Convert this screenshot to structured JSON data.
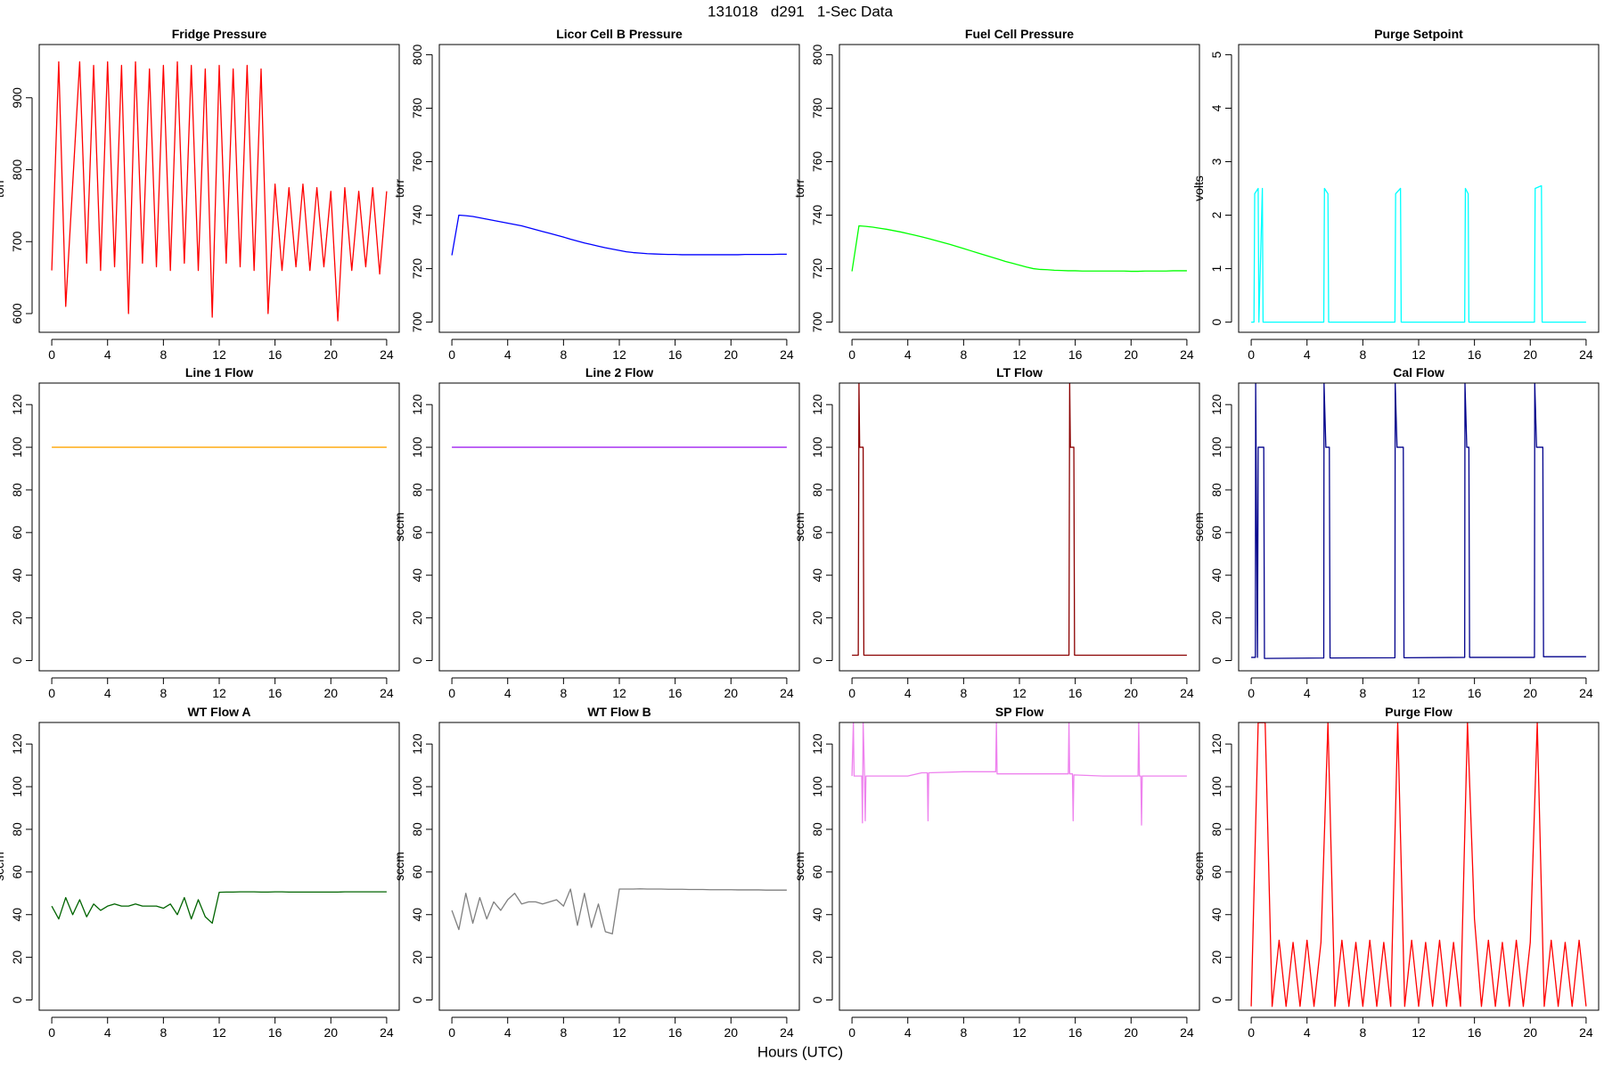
{
  "title": "131018   d291   1-Sec Data",
  "x_label": "Hours (UTC)",
  "chart_data": [
    {
      "type": "line",
      "title": "Fridge Pressure",
      "y_label": "torr",
      "color": "#ff0000",
      "x": [
        0,
        0.5,
        1,
        1.5,
        2,
        2.5,
        3,
        3.5,
        4,
        4.5,
        5,
        5.5,
        6,
        6.5,
        7,
        7.5,
        8,
        8.5,
        9,
        9.5,
        10,
        10.5,
        11,
        11.5,
        12,
        12.5,
        13,
        13.5,
        14,
        14.5,
        15,
        15.5,
        16,
        16.5,
        17,
        17.5,
        18,
        18.5,
        19,
        19.5,
        20,
        20.5,
        21,
        21.5,
        22,
        22.5,
        23,
        23.5,
        24
      ],
      "values": [
        660,
        950,
        610,
        780,
        950,
        670,
        945,
        660,
        950,
        665,
        945,
        600,
        950,
        670,
        940,
        665,
        945,
        660,
        950,
        670,
        945,
        660,
        940,
        595,
        945,
        670,
        940,
        665,
        945,
        660,
        940,
        600,
        780,
        660,
        775,
        665,
        780,
        660,
        775,
        665,
        770,
        590,
        775,
        660,
        770,
        665,
        775,
        655,
        770
      ],
      "xlim": [
        -0.9,
        24.9
      ],
      "ylim": [
        574,
        974
      ],
      "xticks": [
        0,
        4,
        8,
        12,
        16,
        20,
        24
      ],
      "yticks": [
        600,
        700,
        800,
        900
      ]
    },
    {
      "type": "line",
      "title": "Licor Cell B Pressure",
      "y_label": "torr",
      "color": "#0000ff",
      "x": [
        0,
        0.5,
        1,
        1.5,
        2,
        2.5,
        3,
        3.5,
        4,
        4.5,
        5,
        5.5,
        6,
        6.5,
        7,
        7.5,
        8,
        8.5,
        9,
        9.5,
        10,
        10.5,
        11,
        11.5,
        12,
        12.5,
        13,
        13.5,
        14,
        14.5,
        15,
        15.5,
        16,
        16.5,
        17,
        17.5,
        18,
        18.5,
        19,
        19.5,
        20,
        20.5,
        21,
        21.5,
        22,
        22.5,
        23,
        23.5,
        24
      ],
      "values": [
        725,
        740,
        739.8,
        739.5,
        739,
        738.5,
        738,
        737.5,
        737,
        736.5,
        736,
        735.3,
        734.6,
        733.9,
        733.2,
        732.5,
        731.8,
        731,
        730.3,
        729.6,
        729,
        728.4,
        727.8,
        727.3,
        726.8,
        726.3,
        726,
        725.8,
        725.6,
        725.5,
        725.4,
        725.3,
        725.3,
        725.2,
        725.2,
        725.2,
        725.2,
        725.2,
        725.2,
        725.2,
        725.2,
        725.2,
        725.3,
        725.3,
        725.3,
        725.3,
        725.3,
        725.4,
        725.4
      ],
      "xlim": [
        -0.9,
        24.9
      ],
      "ylim": [
        696.2,
        803.8
      ],
      "xticks": [
        0,
        4,
        8,
        12,
        16,
        20,
        24
      ],
      "yticks": [
        700,
        720,
        740,
        760,
        780,
        800
      ]
    },
    {
      "type": "line",
      "title": "Fuel Cell Pressure",
      "y_label": "torr",
      "color": "#00ff00",
      "x": [
        0,
        0.5,
        1,
        1.5,
        2,
        2.5,
        3,
        3.5,
        4,
        4.5,
        5,
        5.5,
        6,
        6.5,
        7,
        7.5,
        8,
        8.5,
        9,
        9.5,
        10,
        10.5,
        11,
        11.5,
        12,
        12.5,
        13,
        13.5,
        14,
        14.5,
        15,
        15.5,
        16,
        16.5,
        17,
        17.5,
        18,
        18.5,
        19,
        19.5,
        20,
        20.5,
        21,
        21.5,
        22,
        22.5,
        23,
        23.5,
        24
      ],
      "values": [
        719,
        736,
        735.8,
        735.5,
        735.1,
        734.7,
        734.2,
        733.7,
        733.1,
        732.5,
        731.9,
        731.2,
        730.5,
        729.8,
        729.1,
        728.3,
        727.5,
        726.7,
        725.9,
        725.1,
        724.3,
        723.5,
        722.7,
        722,
        721.3,
        720.6,
        720,
        719.7,
        719.6,
        719.4,
        719.3,
        719.2,
        719.2,
        719.1,
        719.1,
        719.1,
        719.1,
        719.1,
        719.1,
        719.1,
        719,
        719,
        719.1,
        719.1,
        719.1,
        719.1,
        719.2,
        719.2,
        719.2
      ],
      "xlim": [
        -0.9,
        24.9
      ],
      "ylim": [
        696.2,
        803.8
      ],
      "xticks": [
        0,
        4,
        8,
        12,
        16,
        20,
        24
      ],
      "yticks": [
        700,
        720,
        740,
        760,
        780,
        800
      ]
    },
    {
      "type": "line",
      "title": "Purge Setpoint",
      "y_label": "volts",
      "color": "#00ffff",
      "x": [
        0,
        0.2,
        0.25,
        0.5,
        0.55,
        0.8,
        0.85,
        5.2,
        5.25,
        5.5,
        5.55,
        10.3,
        10.35,
        10.7,
        10.75,
        15.3,
        15.35,
        15.55,
        15.6,
        20.3,
        20.35,
        20.8,
        20.85,
        24
      ],
      "values": [
        0,
        0,
        2.4,
        2.5,
        0,
        2.5,
        0,
        0,
        2.5,
        2.4,
        0,
        0,
        2.4,
        2.5,
        0,
        0,
        2.5,
        2.4,
        0,
        0,
        2.5,
        2.55,
        0,
        0
      ],
      "xlim": [
        -0.9,
        24.9
      ],
      "ylim": [
        -0.19,
        5.19
      ],
      "xticks": [
        0,
        4,
        8,
        12,
        16,
        20,
        24
      ],
      "yticks": [
        0,
        1,
        2,
        3,
        4,
        5
      ]
    },
    {
      "type": "line",
      "title": "Line 1 Flow",
      "color": "#ffa500",
      "x": [
        0,
        24
      ],
      "values": [
        100,
        100
      ],
      "xlim": [
        -0.9,
        24.9
      ],
      "ylim": [
        -4.8,
        130.1
      ],
      "xticks": [
        0,
        4,
        8,
        12,
        16,
        20,
        24
      ],
      "yticks": [
        0,
        20,
        40,
        60,
        80,
        100,
        120
      ]
    },
    {
      "type": "line",
      "title": "Line 2 Flow",
      "y_label": "sccm",
      "color": "#a020f0",
      "x": [
        0,
        24
      ],
      "values": [
        100,
        100
      ],
      "xlim": [
        -0.9,
        24.9
      ],
      "ylim": [
        -4.8,
        130.1
      ],
      "xticks": [
        0,
        4,
        8,
        12,
        16,
        20,
        24
      ],
      "yticks": [
        0,
        20,
        40,
        60,
        80,
        100,
        120
      ]
    },
    {
      "type": "line",
      "title": "LT Flow",
      "y_label": "sccm",
      "color": "#8b0000",
      "x": [
        0,
        0.45,
        0.5,
        0.55,
        0.8,
        0.85,
        15.55,
        15.6,
        15.65,
        15.9,
        15.95,
        24
      ],
      "values": [
        2.5,
        2.5,
        130,
        100,
        100,
        2.5,
        2.5,
        130,
        100,
        100,
        2.5,
        2.5
      ],
      "xlim": [
        -0.9,
        24.9
      ],
      "ylim": [
        -4.8,
        130.1
      ],
      "xticks": [
        0,
        4,
        8,
        12,
        16,
        20,
        24
      ],
      "yticks": [
        0,
        20,
        40,
        60,
        80,
        100,
        120
      ]
    },
    {
      "type": "line",
      "title": "Cal Flow",
      "y_label": "sccm",
      "color": "#00008b",
      "x": [
        0,
        0.3,
        0.32,
        0.45,
        0.5,
        0.9,
        0.95,
        5.2,
        5.22,
        5.35,
        5.6,
        5.65,
        10.3,
        10.32,
        10.45,
        10.9,
        10.95,
        15.3,
        15.32,
        15.45,
        15.6,
        15.65,
        20.3,
        20.32,
        20.45,
        20.9,
        20.95,
        24
      ],
      "values": [
        1.5,
        1.5,
        130,
        1.5,
        100,
        100,
        1,
        1.2,
        130,
        100,
        100,
        1.2,
        1.3,
        130,
        100,
        100,
        1.3,
        1.5,
        130,
        100,
        100,
        1.5,
        1.5,
        130,
        100,
        100,
        1.8,
        1.8
      ],
      "xlim": [
        -0.9,
        24.9
      ],
      "ylim": [
        -4.8,
        130.1
      ],
      "xticks": [
        0,
        4,
        8,
        12,
        16,
        20,
        24
      ],
      "yticks": [
        0,
        20,
        40,
        60,
        80,
        100,
        120
      ]
    },
    {
      "type": "line",
      "title": "WT Flow A",
      "y_label": "sccm",
      "color": "#006400",
      "x": [
        0,
        0.5,
        1,
        1.5,
        2,
        2.5,
        3,
        3.5,
        4,
        4.5,
        5,
        5.5,
        6,
        6.5,
        7,
        7.5,
        8,
        8.5,
        9,
        9.5,
        10,
        10.5,
        11,
        11.5,
        12,
        12.5,
        13,
        13.5,
        14,
        14.5,
        15,
        15.5,
        16,
        16.5,
        17,
        17.5,
        18,
        18.5,
        19,
        19.5,
        20,
        20.5,
        21,
        21.5,
        22,
        22.5,
        23,
        23.5,
        24
      ],
      "values": [
        44,
        38,
        48,
        40,
        47,
        39,
        45,
        42,
        44,
        45,
        44,
        44,
        45,
        44,
        44,
        44,
        43,
        45,
        40,
        48,
        38,
        47,
        39,
        36,
        50.5,
        50.6,
        50.6,
        50.7,
        50.7,
        50.7,
        50.6,
        50.6,
        50.7,
        50.7,
        50.6,
        50.6,
        50.6,
        50.6,
        50.6,
        50.6,
        50.6,
        50.6,
        50.7,
        50.7,
        50.7,
        50.7,
        50.7,
        50.7,
        50.7
      ],
      "xlim": [
        -0.9,
        24.9
      ],
      "ylim": [
        -4.8,
        130.1
      ],
      "xticks": [
        0,
        4,
        8,
        12,
        16,
        20,
        24
      ],
      "yticks": [
        0,
        20,
        40,
        60,
        80,
        100,
        120
      ]
    },
    {
      "type": "line",
      "title": "WT Flow B",
      "y_label": "sccm",
      "color": "#7f7f7f",
      "x": [
        0,
        0.5,
        1,
        1.5,
        2,
        2.5,
        3,
        3.5,
        4,
        4.5,
        5,
        5.5,
        6,
        6.5,
        7,
        7.5,
        8,
        8.5,
        9,
        9.5,
        10,
        10.5,
        11,
        11.5,
        12,
        12.5,
        13,
        13.5,
        14,
        14.5,
        15,
        15.5,
        16,
        16.5,
        17,
        17.5,
        18,
        18.5,
        19,
        19.5,
        20,
        20.5,
        21,
        21.5,
        22,
        22.5,
        23,
        23.5,
        24
      ],
      "values": [
        42,
        33,
        50,
        36,
        48,
        38,
        46,
        42,
        47,
        50,
        45,
        46,
        46,
        45,
        46,
        47,
        44,
        52,
        35,
        50,
        34,
        45,
        32,
        31,
        52,
        52,
        52,
        52.1,
        52,
        52,
        52,
        51.9,
        51.9,
        51.9,
        51.8,
        51.8,
        51.8,
        51.7,
        51.7,
        51.7,
        51.7,
        51.6,
        51.6,
        51.6,
        51.6,
        51.5,
        51.5,
        51.5,
        51.5
      ],
      "xlim": [
        -0.9,
        24.9
      ],
      "ylim": [
        -4.8,
        130.1
      ],
      "xticks": [
        0,
        4,
        8,
        12,
        16,
        20,
        24
      ],
      "yticks": [
        0,
        20,
        40,
        60,
        80,
        100,
        120
      ]
    },
    {
      "type": "line",
      "title": "SP Flow",
      "y_label": "sccm",
      "color": "#ee82ee",
      "x": [
        0,
        0.1,
        0.15,
        0.2,
        0.7,
        0.75,
        0.8,
        0.9,
        0.95,
        1,
        4,
        5,
        5.4,
        5.45,
        5.5,
        8,
        10.3,
        10.35,
        10.4,
        12,
        15.5,
        15.55,
        15.6,
        15.8,
        15.85,
        15.9,
        18,
        20.5,
        20.55,
        20.6,
        20.7,
        20.75,
        20.8,
        24
      ],
      "values": [
        105,
        130,
        105,
        105,
        105,
        83,
        130,
        105,
        84,
        105,
        105,
        106.5,
        106.5,
        84,
        106.5,
        107,
        107,
        130,
        106,
        106,
        106,
        130,
        106,
        106,
        84,
        105.5,
        105,
        105,
        130,
        105,
        105,
        82,
        105,
        105
      ],
      "xlim": [
        -0.9,
        24.9
      ],
      "ylim": [
        -4.8,
        130.1
      ],
      "xticks": [
        0,
        4,
        8,
        12,
        16,
        20,
        24
      ],
      "yticks": [
        0,
        20,
        40,
        60,
        80,
        100,
        120
      ]
    },
    {
      "type": "line",
      "title": "Purge Flow",
      "y_label": "sccm",
      "color": "#ff0000",
      "x": [
        0,
        0.5,
        1,
        1.5,
        2,
        2.5,
        3,
        3.5,
        4,
        4.5,
        5,
        5.5,
        6,
        6.5,
        7,
        7.5,
        8,
        8.5,
        9,
        9.5,
        10,
        10.5,
        11,
        11.5,
        12,
        12.5,
        13,
        13.5,
        14,
        14.5,
        15,
        15.5,
        16,
        16.5,
        17,
        17.5,
        18,
        18.5,
        19,
        19.5,
        20,
        20.5,
        21,
        21.5,
        22,
        22.5,
        23,
        23.5,
        24
      ],
      "values": [
        -3,
        130,
        130,
        -3,
        28,
        -3,
        27,
        -3,
        28,
        -3,
        27,
        130,
        -3,
        28,
        -3,
        27,
        -3,
        28,
        -3,
        27,
        -3,
        130,
        -3,
        28,
        -3,
        27,
        -3,
        28,
        -3,
        27,
        -3,
        130,
        38,
        -3,
        28,
        -3,
        27,
        -3,
        28,
        -3,
        27,
        130,
        -3,
        28,
        -3,
        27,
        -3,
        28,
        -3
      ],
      "xlim": [
        -0.9,
        24.9
      ],
      "ylim": [
        -4.8,
        130.1
      ],
      "xticks": [
        0,
        4,
        8,
        12,
        16,
        20,
        24
      ],
      "yticks": [
        0,
        20,
        40,
        60,
        80,
        100,
        120
      ]
    }
  ]
}
